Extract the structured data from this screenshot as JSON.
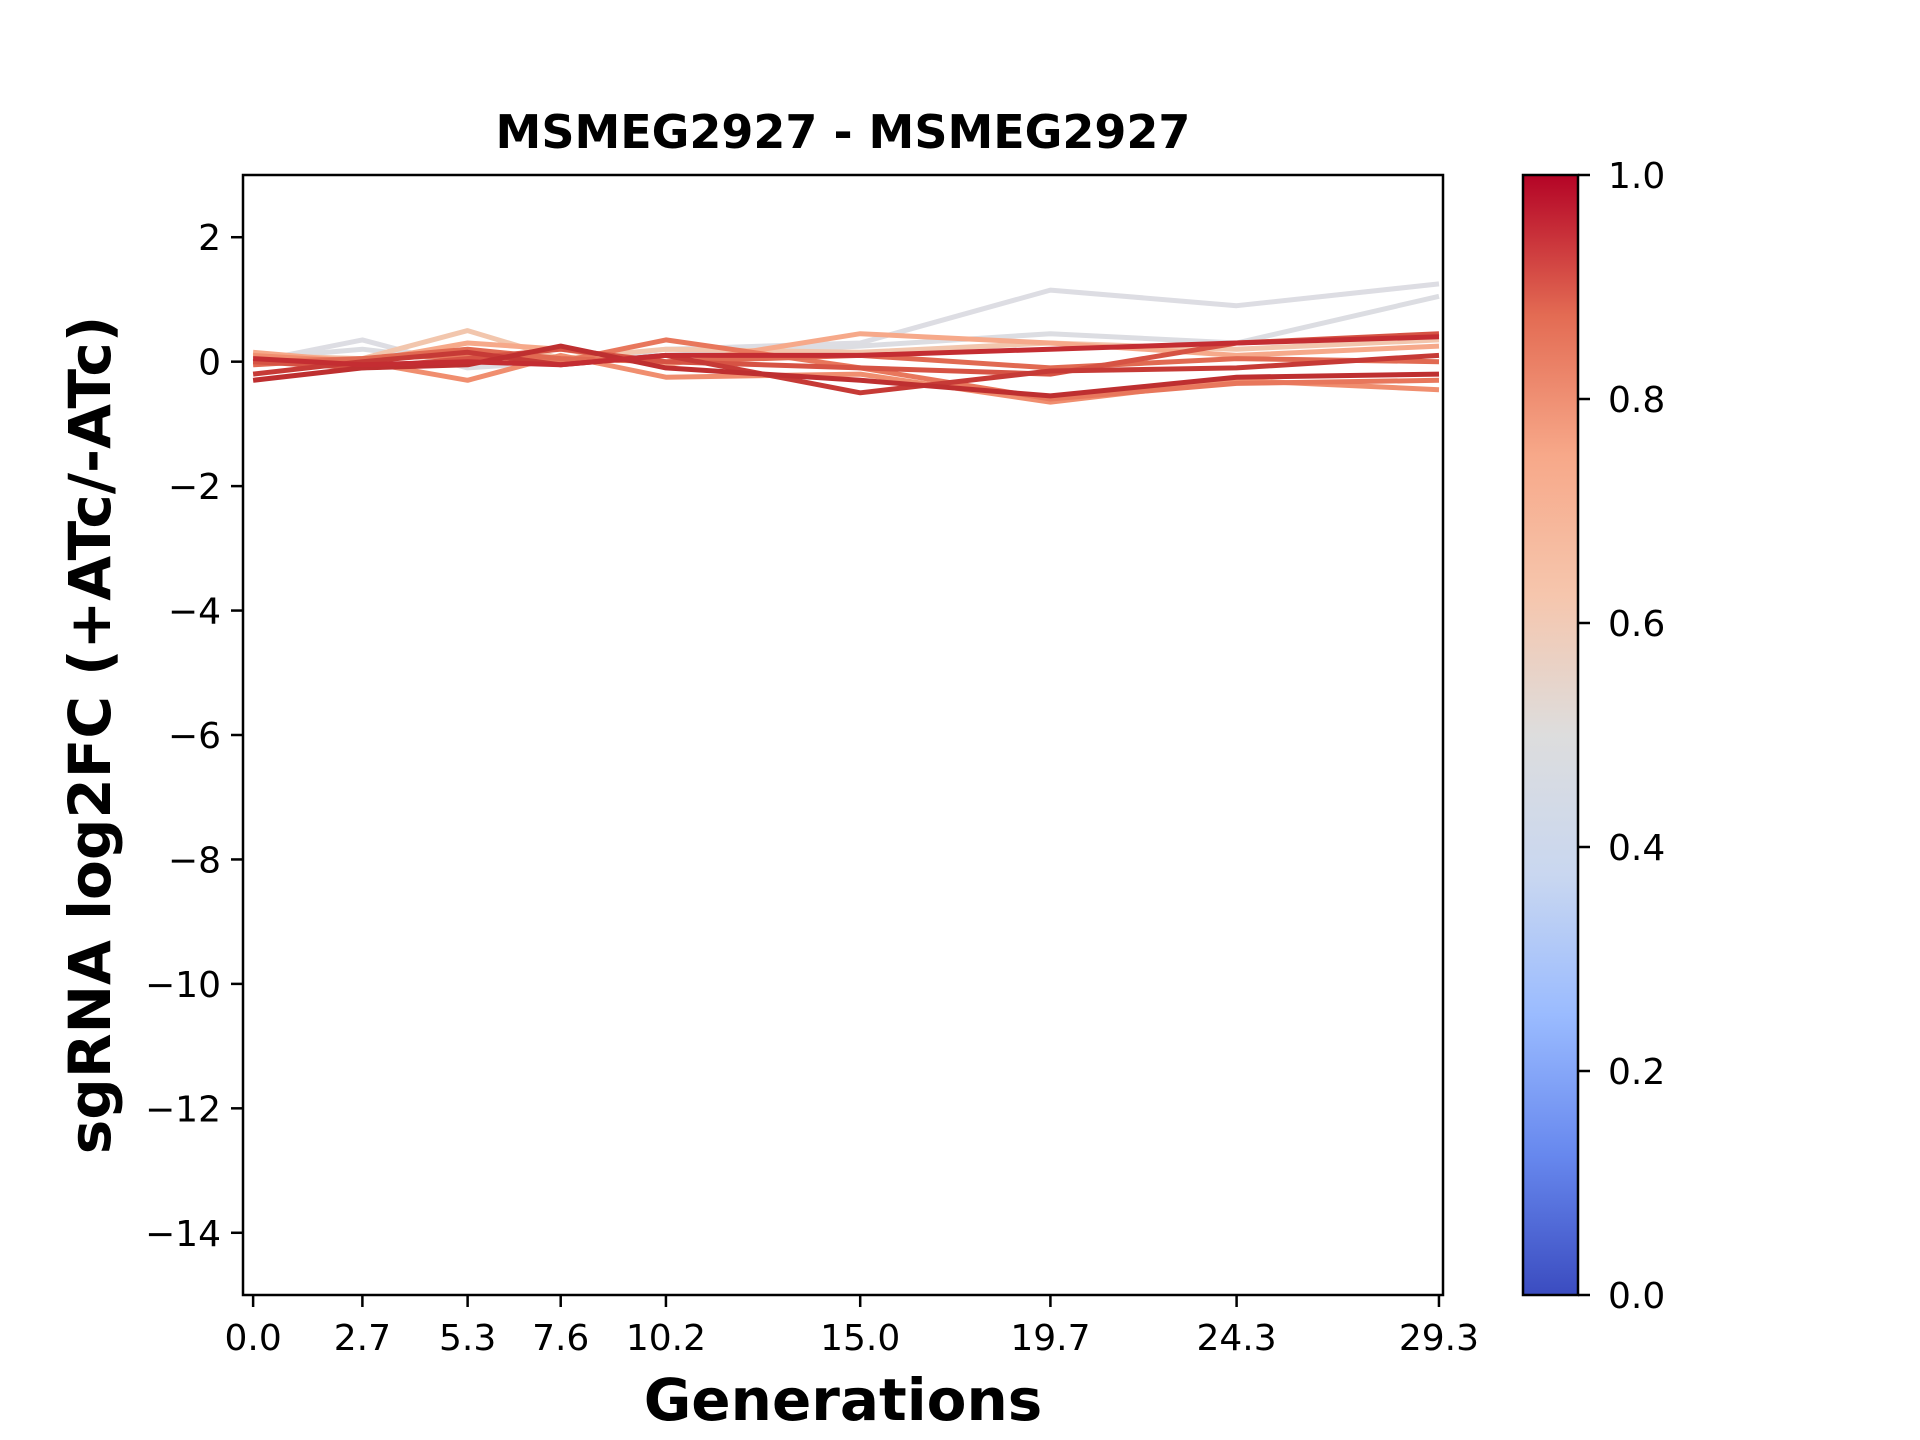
{
  "chart_data": {
    "type": "line",
    "title": "MSMEG2927 - MSMEG2927",
    "xlabel": "Generations",
    "ylabel": "sgRNA log2FC (+ATc/-ATc)",
    "x": [
      0.0,
      2.7,
      5.3,
      7.6,
      10.2,
      15.0,
      19.7,
      24.3,
      29.3
    ],
    "x_tick_labels": [
      "0.0",
      "2.7",
      "5.3",
      "7.6",
      "10.2",
      "15.0",
      "19.7",
      "24.3",
      "29.3"
    ],
    "xlim": [
      -0.25,
      29.4
    ],
    "ylim": [
      -15,
      3
    ],
    "y_ticks": [
      2,
      0,
      -2,
      -4,
      -6,
      -8,
      -10,
      -12,
      -14
    ],
    "y_tick_labels": [
      "2",
      "0",
      "−2",
      "−4",
      "−6",
      "−8",
      "−10",
      "−12",
      "−14"
    ],
    "colorbar": {
      "colormap": "coolwarm",
      "range": [
        0.0,
        1.0
      ],
      "tick_labels": [
        "0.0",
        "0.2",
        "0.4",
        "0.6",
        "0.8",
        "1.0"
      ],
      "stops": [
        "#3b4cc0",
        "#6788ee",
        "#9abbff",
        "#c9d7f0",
        "#dddddd",
        "#f6c6ad",
        "#f7a889",
        "#e36b53",
        "#b40426"
      ]
    },
    "grid": false,
    "series": [
      {
        "values": [
          0.0,
          0.35,
          -0.1,
          0.0,
          0.2,
          0.3,
          1.15,
          0.9,
          1.25
        ],
        "color_value": 0.5,
        "color": "#dddde3"
      },
      {
        "values": [
          0.05,
          0.2,
          0.0,
          0.05,
          0.1,
          0.25,
          0.45,
          0.3,
          1.05
        ],
        "color_value": 0.5,
        "color": "#dcdde2"
      },
      {
        "values": [
          0.1,
          0.05,
          0.5,
          0.05,
          0.2,
          0.15,
          0.3,
          0.2,
          0.35
        ],
        "color_value": 0.62,
        "color": "#f2c6ad"
      },
      {
        "values": [
          0.15,
          0.0,
          0.3,
          0.2,
          -0.05,
          0.45,
          0.3,
          0.1,
          0.25
        ],
        "color_value": 0.7,
        "color": "#f6a98a"
      },
      {
        "values": [
          0.1,
          0.0,
          -0.3,
          0.1,
          -0.25,
          -0.2,
          -0.65,
          -0.3,
          -0.45
        ],
        "color_value": 0.75,
        "color": "#f08e6f"
      },
      {
        "values": [
          0.0,
          0.05,
          0.1,
          0.0,
          0.35,
          -0.1,
          -0.6,
          -0.35,
          -0.3
        ],
        "color_value": 0.8,
        "color": "#e8775c"
      },
      {
        "values": [
          -0.05,
          0.05,
          0.2,
          0.05,
          0.0,
          0.1,
          -0.1,
          0.05,
          0.0
        ],
        "color_value": 0.82,
        "color": "#e16a52"
      },
      {
        "values": [
          0.0,
          -0.1,
          0.05,
          0.2,
          0.0,
          -0.1,
          -0.2,
          0.3,
          0.45
        ],
        "color_value": 0.87,
        "color": "#d65344"
      },
      {
        "values": [
          -0.2,
          0.0,
          0.15,
          -0.05,
          0.1,
          -0.5,
          -0.15,
          -0.1,
          0.1
        ],
        "color_value": 0.92,
        "color": "#c63a36"
      },
      {
        "values": [
          -0.3,
          -0.1,
          -0.05,
          0.25,
          -0.1,
          -0.3,
          -0.55,
          -0.25,
          -0.2
        ],
        "color_value": 0.95,
        "color": "#be2f30"
      },
      {
        "values": [
          0.05,
          -0.05,
          0.0,
          -0.05,
          0.1,
          0.1,
          0.2,
          0.3,
          0.4
        ],
        "color_value": 0.97,
        "color": "#c42d32"
      }
    ]
  }
}
